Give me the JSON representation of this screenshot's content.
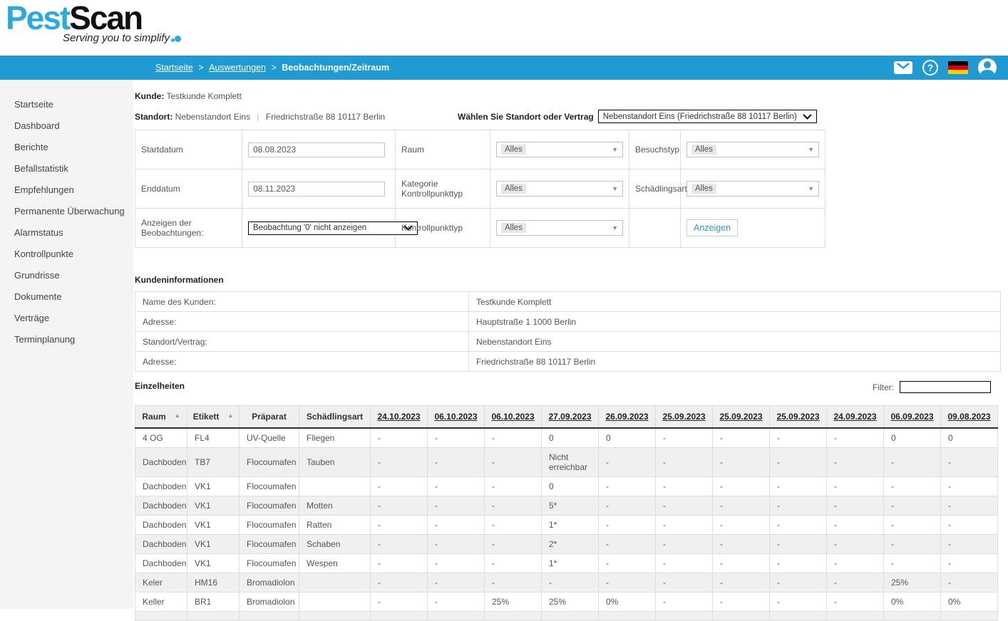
{
  "logo": {
    "part1": "Pest",
    "part2": "Scan",
    "tagline": "Serving you to simplify"
  },
  "topbar": {
    "breadcrumb": [
      {
        "label": "Startseite",
        "link": true
      },
      {
        "label": "Auswertungen",
        "link": true
      },
      {
        "label": "Beobachtungen/Zeitraum",
        "link": false
      }
    ],
    "icons": [
      "mail-icon",
      "help-icon",
      "german-flag-icon",
      "user-avatar-icon"
    ]
  },
  "sidebar": {
    "items": [
      "Startseite",
      "Dashboard",
      "Berichte",
      "Befallstatistik",
      "Empfehlungen",
      "Permanente Überwachung",
      "Alarmstatus",
      "Kontrollpunkte",
      "Grundrisse",
      "Dokumente",
      "Verträge",
      "Terminplanung"
    ]
  },
  "customer": {
    "kunde_label": "Kunde:",
    "kunde_value": "Testkunde Komplett",
    "standort_label": "Standort:",
    "standort_value": "Nebenstandort Eins",
    "standort_separator": "|",
    "standort_address": "Friedrichstraße 88 10117 Berlin",
    "select_label": "Wählen Sie Standort oder Vertrag",
    "select_value": "Nebenstandort Eins (Friedrichstraße 88 10117 Berlin)"
  },
  "filters": {
    "startdatum_label": "Startdatum",
    "startdatum_value": "08.08.2023",
    "enddatum_label": "Enddatum",
    "enddatum_value": "08.11.2023",
    "anzeigen_beob_label": "Anzeigen der Beobachtungen:",
    "anzeigen_beob_value": "Beobachtung '0' nicht anzeigen",
    "raum_label": "Raum",
    "raum_value": "Alles",
    "kategorie_label": "Kategorie Kontrollpunkttyp",
    "kategorie_value": "Alles",
    "kontrollpunkttyp_label": "Kontrollpunkttyp",
    "kontrollpunkttyp_value": "Alles",
    "besuchstyp_label": "Besuchstyp",
    "besuchstyp_value": "Alles",
    "schaedlingsart_label": "Schädlingsart",
    "schaedlingsart_value": "Alles",
    "anzeigen_button": "Anzeigen"
  },
  "kundeninformationen": {
    "title": "Kundeninformationen",
    "rows": [
      {
        "label": "Name des Kunden:",
        "value": "Testkunde Komplett"
      },
      {
        "label": "Adresse:",
        "value": "Hauptstraße 1 1000 Berlin"
      },
      {
        "label": "Standort/Vertrag:",
        "value": "Nebenstandort Eins"
      },
      {
        "label": "Adresse:",
        "value": "Friedrichstraße 88 10117 Berlin"
      }
    ]
  },
  "einzelheiten": {
    "title": "Einzelheiten",
    "filter_label": "Filter:",
    "filter_value": "",
    "columns": [
      "Raum",
      "Etikett",
      "Präparat",
      "Schädlingsart"
    ],
    "sorted_columns": [
      "Raum",
      "Etikett"
    ],
    "date_columns": [
      "24.10.2023",
      "06.10.2023",
      "06.10.2023",
      "27.09.2023",
      "26.09.2023",
      "25.09.2023",
      "25.09.2023",
      "25.09.2023",
      "24.09.2023",
      "06.09.2023",
      "09.08.2023"
    ],
    "rows": [
      {
        "raum": "4 OG",
        "etikett": "FL4",
        "praeparat": "UV-Quelle",
        "schaedlingsart": "Fliegen",
        "values": [
          "-",
          "-",
          "-",
          "0",
          "0",
          "-",
          "-",
          "-",
          "-",
          "0",
          "0"
        ]
      },
      {
        "raum": "Dachboden",
        "etikett": "TB7",
        "praeparat": "Flocoumafen",
        "schaedlingsart": "Tauben",
        "values": [
          "-",
          "-",
          "-",
          "Nicht erreichbar",
          "-",
          "-",
          "-",
          "-",
          "-",
          "-",
          "-"
        ]
      },
      {
        "raum": "Dachboden",
        "etikett": "VK1",
        "praeparat": "Flocoumafen",
        "schaedlingsart": "",
        "values": [
          "-",
          "-",
          "-",
          "0",
          "-",
          "-",
          "-",
          "-",
          "-",
          "-",
          "-"
        ]
      },
      {
        "raum": "Dachboden",
        "etikett": "VK1",
        "praeparat": "Flocoumafen",
        "schaedlingsart": "Motten",
        "values": [
          "-",
          "-",
          "-",
          "5*",
          "-",
          "-",
          "-",
          "-",
          "-",
          "-",
          "-"
        ]
      },
      {
        "raum": "Dachboden",
        "etikett": "VK1",
        "praeparat": "Flocoumafen",
        "schaedlingsart": "Ratten",
        "values": [
          "-",
          "-",
          "-",
          "1*",
          "-",
          "-",
          "-",
          "-",
          "-",
          "-",
          "-"
        ]
      },
      {
        "raum": "Dachboden",
        "etikett": "VK1",
        "praeparat": "Flocoumafen",
        "schaedlingsart": "Schaben",
        "values": [
          "-",
          "-",
          "-",
          "2*",
          "-",
          "-",
          "-",
          "-",
          "-",
          "-",
          "-"
        ]
      },
      {
        "raum": "Dachboden",
        "etikett": "VK1",
        "praeparat": "Flocoumafen",
        "schaedlingsart": "Wespen",
        "values": [
          "-",
          "-",
          "-",
          "1*",
          "-",
          "-",
          "-",
          "-",
          "-",
          "-",
          "-"
        ]
      },
      {
        "raum": "Keler",
        "etikett": "HM16",
        "praeparat": "Bromadiolon",
        "schaedlingsart": "",
        "values": [
          "-",
          "-",
          "-",
          "-",
          "-",
          "-",
          "-",
          "-",
          "-",
          "25%",
          "-"
        ]
      },
      {
        "raum": "Keller",
        "etikett": "BR1",
        "praeparat": "Bromadiolon",
        "schaedlingsart": "",
        "values": [
          "-",
          "-",
          "25%",
          "25%",
          "0%",
          "-",
          "-",
          "-",
          "-",
          "0%",
          "0%"
        ]
      }
    ]
  },
  "colors": {
    "bar_blue": "#1f9ad3",
    "logo_blue": "#29aae1",
    "link_blue": "#2e96d3",
    "sort_arrow_purple": "#8888d8",
    "alt_row_gray": "#f0f0f0",
    "border_gray": "#dddddd",
    "flag_black": "#000000",
    "flag_red": "#dd0000",
    "flag_gold": "#ffce00"
  }
}
